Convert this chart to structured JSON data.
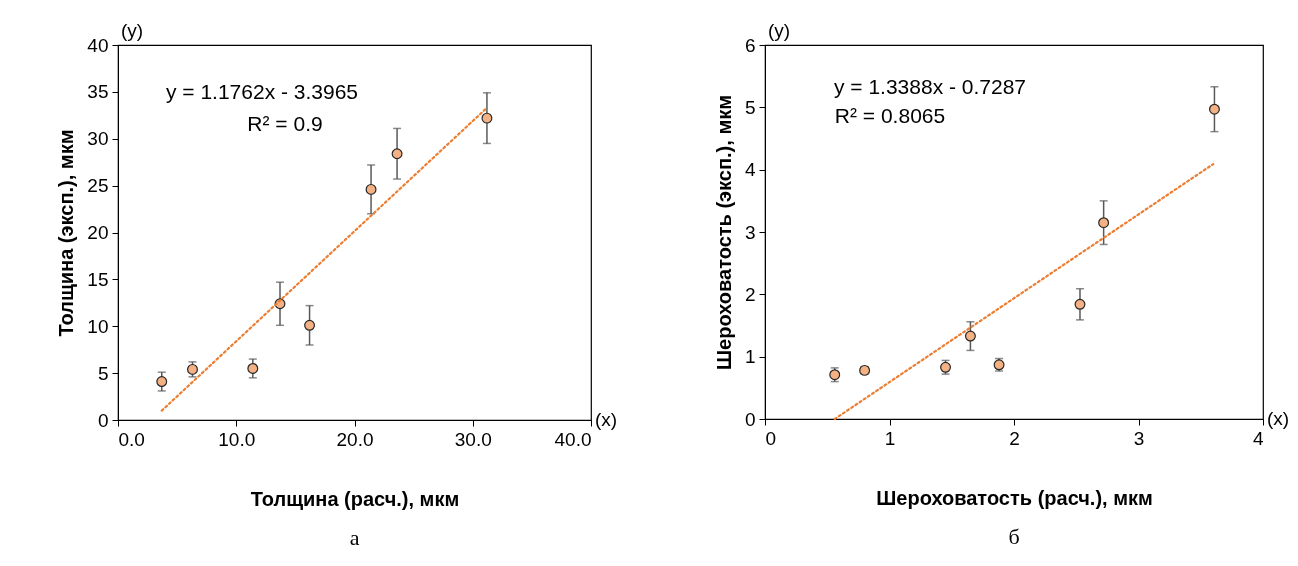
{
  "chart_data": [
    {
      "type": "scatter",
      "xlabel": "Толщина (расч.), мкм",
      "ylabel": "Толщина (эксп.), мкм",
      "xlim": [
        0,
        40
      ],
      "xticks": [
        {
          "value": 0,
          "label": "0.0"
        },
        {
          "value": 10,
          "label": "10.0"
        },
        {
          "value": 20,
          "label": "20.0"
        },
        {
          "value": 30,
          "label": "30.0"
        },
        {
          "value": 40,
          "label": "40.0"
        }
      ],
      "ylim": [
        0,
        40
      ],
      "yticks": [
        0,
        5,
        10,
        15,
        20,
        25,
        30,
        35,
        40
      ],
      "series": [
        {
          "marker": "circle",
          "color": "#f4b183",
          "x": [
            3.7,
            6.3,
            11.4,
            13.7,
            16.2,
            21.4,
            23.6,
            31.2
          ],
          "values": [
            4.1,
            5.4,
            5.5,
            12.4,
            10.1,
            24.6,
            28.4,
            32.2
          ],
          "errors": [
            1.0,
            0.8,
            1.0,
            2.3,
            2.1,
            2.6,
            2.7,
            2.7
          ]
        },
        {
          "type": "line",
          "color": "#ed7d31",
          "line_style": "dotted",
          "x": [
            3.7,
            31.2
          ],
          "values": [
            1.0,
            33.3
          ]
        }
      ],
      "annotations": [
        "(y)",
        "(x)",
        "y = 1.1762x - 3.3965",
        "R² = 0.9",
        "а"
      ]
    },
    {
      "type": "scatter",
      "xlabel": "Шероховатость (расч.), мкм",
      "ylabel": "Шероховатость (эксп.), мкм",
      "xlim": [
        0,
        4
      ],
      "xticks": [
        0,
        1,
        2,
        3,
        4
      ],
      "ylim": [
        0,
        6
      ],
      "yticks": [
        0,
        1,
        2,
        3,
        4,
        5,
        6
      ],
      "series": [
        {
          "marker": "circle",
          "color": "#f4b183",
          "x": [
            0.56,
            0.8,
            1.45,
            1.65,
            1.88,
            2.53,
            2.72,
            3.61
          ],
          "values": [
            0.71,
            0.78,
            0.83,
            1.33,
            0.87,
            1.84,
            3.15,
            4.97
          ],
          "errors": [
            0.11,
            0.06,
            0.11,
            0.23,
            0.1,
            0.25,
            0.35,
            0.36
          ]
        },
        {
          "type": "line",
          "color": "#ed7d31",
          "line_style": "dotted",
          "x": [
            0.56,
            3.6
          ],
          "values": [
            0.0,
            4.09
          ]
        }
      ],
      "annotations": [
        "(y)",
        "(x)",
        "y = 1.3388x - 0.7287",
        "R² = 0.8065",
        "б"
      ]
    }
  ]
}
